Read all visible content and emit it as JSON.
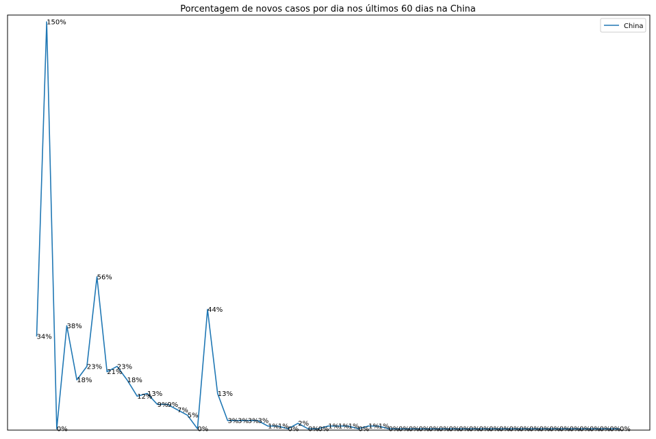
{
  "chart_data": {
    "type": "line",
    "title": "Porcentagem de novos casos por dia nos últimos 60 dias na China",
    "xlabel": "",
    "ylabel": "",
    "x_ticks_visible": false,
    "y_ticks_visible": false,
    "grid": false,
    "legend_position": "top-right",
    "ylim": [
      -0.5,
      152.5
    ],
    "series": [
      {
        "name": "China",
        "color": "#1f77b4",
        "values": [
          34,
          150,
          0,
          38,
          18,
          23,
          56,
          21,
          23,
          18,
          12,
          13,
          9,
          9,
          7,
          5,
          0,
          44,
          13,
          3,
          3,
          3,
          3,
          1,
          1,
          0,
          2,
          0,
          0,
          1,
          1,
          1,
          0,
          1,
          1,
          0,
          0,
          0,
          0,
          0,
          0,
          0,
          0,
          0,
          0,
          0,
          0,
          0,
          0,
          0,
          0,
          0,
          0,
          0,
          0,
          0,
          0,
          0,
          0
        ],
        "labels": [
          "34%",
          "150%",
          "0%",
          "38%",
          "18%",
          "23%",
          "56%",
          "21%",
          "23%",
          "18%",
          "12%",
          "13%",
          "9%",
          "9%",
          "7%",
          "5%",
          "0%",
          "44%",
          "13%",
          "3%",
          "3%",
          "3%",
          "3%",
          "1%",
          "1%",
          "0%",
          "2%",
          "0%",
          "0%",
          "1%",
          "1%",
          "1%",
          "0%",
          "1%",
          "1%",
          "0%",
          "0%",
          "0%",
          "0%",
          "0%",
          "0%",
          "0%",
          "0%",
          "0%",
          "0%",
          "0%",
          "0%",
          "0%",
          "0%",
          "0%",
          "0%",
          "0%",
          "0%",
          "0%",
          "0%",
          "0%",
          "0%",
          "0%",
          "0%"
        ]
      }
    ]
  }
}
